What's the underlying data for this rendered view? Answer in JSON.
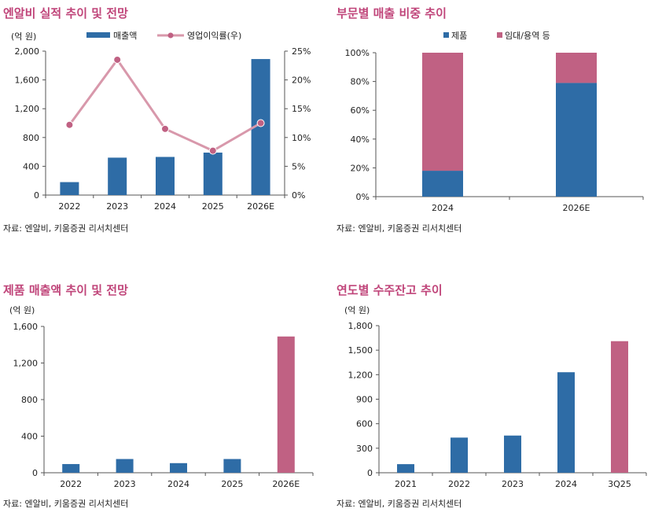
{
  "colors": {
    "title": "#c0457a",
    "blue": "#2e6ca6",
    "pink": "#c06183",
    "line": "#d898ab"
  },
  "panels": [
    {
      "title": "엔알비 실적 추이 및 전망",
      "source": "자료: 엔알비, 키움증권 리서치센터"
    },
    {
      "title": "부문별 매출 비중 추이",
      "source": "자료: 엔알비, 키움증권 리서치센터"
    },
    {
      "title": "제품 매출액 추이 및 전망",
      "source": "자료: 엔알비, 키움증권 리서치센터"
    },
    {
      "title": "연도별 수주잔고 추이",
      "source": "자료: 엔알비, 키움증권 리서치센터"
    }
  ],
  "chart_data": [
    {
      "type": "bar",
      "unit_label": "(억 원)",
      "categories": [
        "2022",
        "2023",
        "2024",
        "2025",
        "2026E"
      ],
      "yticks": [
        "0",
        "400",
        "800",
        "1,200",
        "1,600",
        "2,000"
      ],
      "ylim": [
        0,
        2000
      ],
      "y2ticks": [
        "0%",
        "5%",
        "10%",
        "15%",
        "20%",
        "25%"
      ],
      "y2lim": [
        0,
        25
      ],
      "series": [
        {
          "name": "매출액",
          "type": "bar",
          "axis": "left",
          "values": [
            180,
            520,
            530,
            590,
            1890
          ]
        },
        {
          "name": "영업이익률(우)",
          "type": "line",
          "axis": "right",
          "values": [
            12.2,
            23.5,
            11.5,
            7.7,
            12.5
          ]
        }
      ]
    },
    {
      "type": "bar",
      "stacked": true,
      "categories": [
        "2024",
        "2026E"
      ],
      "yticks": [
        "0%",
        "20%",
        "40%",
        "60%",
        "80%",
        "100%"
      ],
      "ylim": [
        0,
        100
      ],
      "series": [
        {
          "name": "제품",
          "values": [
            18,
            79
          ]
        },
        {
          "name": "임대/용역 등",
          "values": [
            82,
            21
          ]
        }
      ]
    },
    {
      "type": "bar",
      "unit_label": "(억 원)",
      "categories": [
        "2022",
        "2023",
        "2024",
        "2025",
        "2026E"
      ],
      "yticks": [
        "0",
        "400",
        "800",
        "1,200",
        "1,600"
      ],
      "ylim": [
        0,
        1600
      ],
      "values": [
        95,
        150,
        105,
        150,
        1490
      ],
      "highlight_last": true
    },
    {
      "type": "bar",
      "unit_label": "(억 원)",
      "categories": [
        "2021",
        "2022",
        "2023",
        "2024",
        "3Q25"
      ],
      "yticks": [
        "0",
        "300",
        "600",
        "900",
        "1,200",
        "1,500",
        "1,800"
      ],
      "ylim": [
        0,
        1800
      ],
      "values": [
        105,
        430,
        455,
        1230,
        1610
      ],
      "highlight_last": true
    }
  ]
}
